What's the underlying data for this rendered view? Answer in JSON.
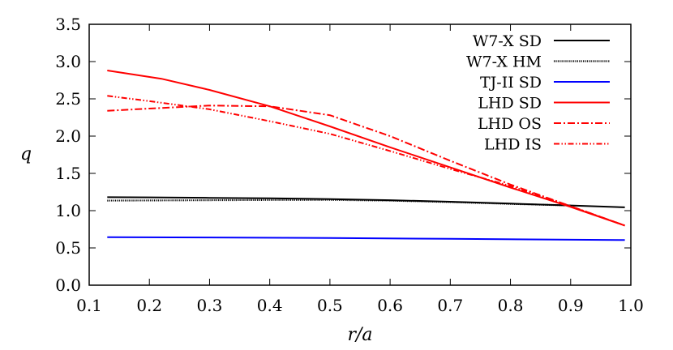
{
  "chart_data": {
    "type": "line",
    "title": "",
    "xlabel": "r/a",
    "ylabel": "q",
    "xlim": [
      0.1,
      1.0
    ],
    "ylim": [
      0.0,
      3.5
    ],
    "x_ticks": [
      "0.1",
      "0.2",
      "0.3",
      "0.4",
      "0.5",
      "0.6",
      "0.7",
      "0.8",
      "0.9",
      "1.0"
    ],
    "y_ticks": [
      "0.0",
      "0.5",
      "1.0",
      "1.5",
      "2.0",
      "2.5",
      "3.0",
      "3.5"
    ],
    "grid": false,
    "legend_position": "top-right",
    "series": [
      {
        "name": "W7-X SD",
        "color": "#000000",
        "style": "solid",
        "x": [
          0.13,
          0.2,
          0.3,
          0.4,
          0.5,
          0.6,
          0.7,
          0.8,
          0.9,
          0.99
        ],
        "y": [
          1.18,
          1.178,
          1.172,
          1.165,
          1.155,
          1.14,
          1.12,
          1.095,
          1.07,
          1.045
        ]
      },
      {
        "name": "W7-X HM",
        "color": "#000000",
        "style": "dotted",
        "x": [
          0.13,
          0.2,
          0.3,
          0.4,
          0.5,
          0.6,
          0.7,
          0.8,
          0.9
        ],
        "y": [
          1.135,
          1.137,
          1.14,
          1.143,
          1.145,
          1.135,
          1.115,
          1.09,
          1.07
        ]
      },
      {
        "name": "TJ-II SD",
        "color": "#0000ff",
        "style": "solid",
        "x": [
          0.13,
          0.3,
          0.5,
          0.7,
          0.99
        ],
        "y": [
          0.645,
          0.64,
          0.633,
          0.622,
          0.605
        ]
      },
      {
        "name": "LHD SD",
        "color": "#ff0000",
        "style": "solid",
        "x": [
          0.13,
          0.22,
          0.3,
          0.4,
          0.5,
          0.6,
          0.7,
          0.8,
          0.9,
          0.99
        ],
        "y": [
          2.88,
          2.77,
          2.62,
          2.4,
          2.13,
          1.85,
          1.58,
          1.31,
          1.05,
          0.8
        ]
      },
      {
        "name": "LHD OS",
        "color": "#ff0000",
        "style": "dashdot",
        "x": [
          0.13,
          0.2,
          0.3,
          0.4,
          0.5,
          0.6,
          0.7,
          0.8,
          0.9,
          0.99
        ],
        "y": [
          2.34,
          2.37,
          2.41,
          2.4,
          2.28,
          2.0,
          1.67,
          1.35,
          1.06,
          0.8
        ]
      },
      {
        "name": "LHD IS",
        "color": "#ff0000",
        "style": "dashdotdot",
        "x": [
          0.13,
          0.2,
          0.3,
          0.4,
          0.5,
          0.6,
          0.7,
          0.8,
          0.9,
          0.99
        ],
        "y": [
          2.54,
          2.47,
          2.36,
          2.2,
          2.03,
          1.8,
          1.56,
          1.33,
          1.06,
          0.8
        ]
      }
    ]
  }
}
